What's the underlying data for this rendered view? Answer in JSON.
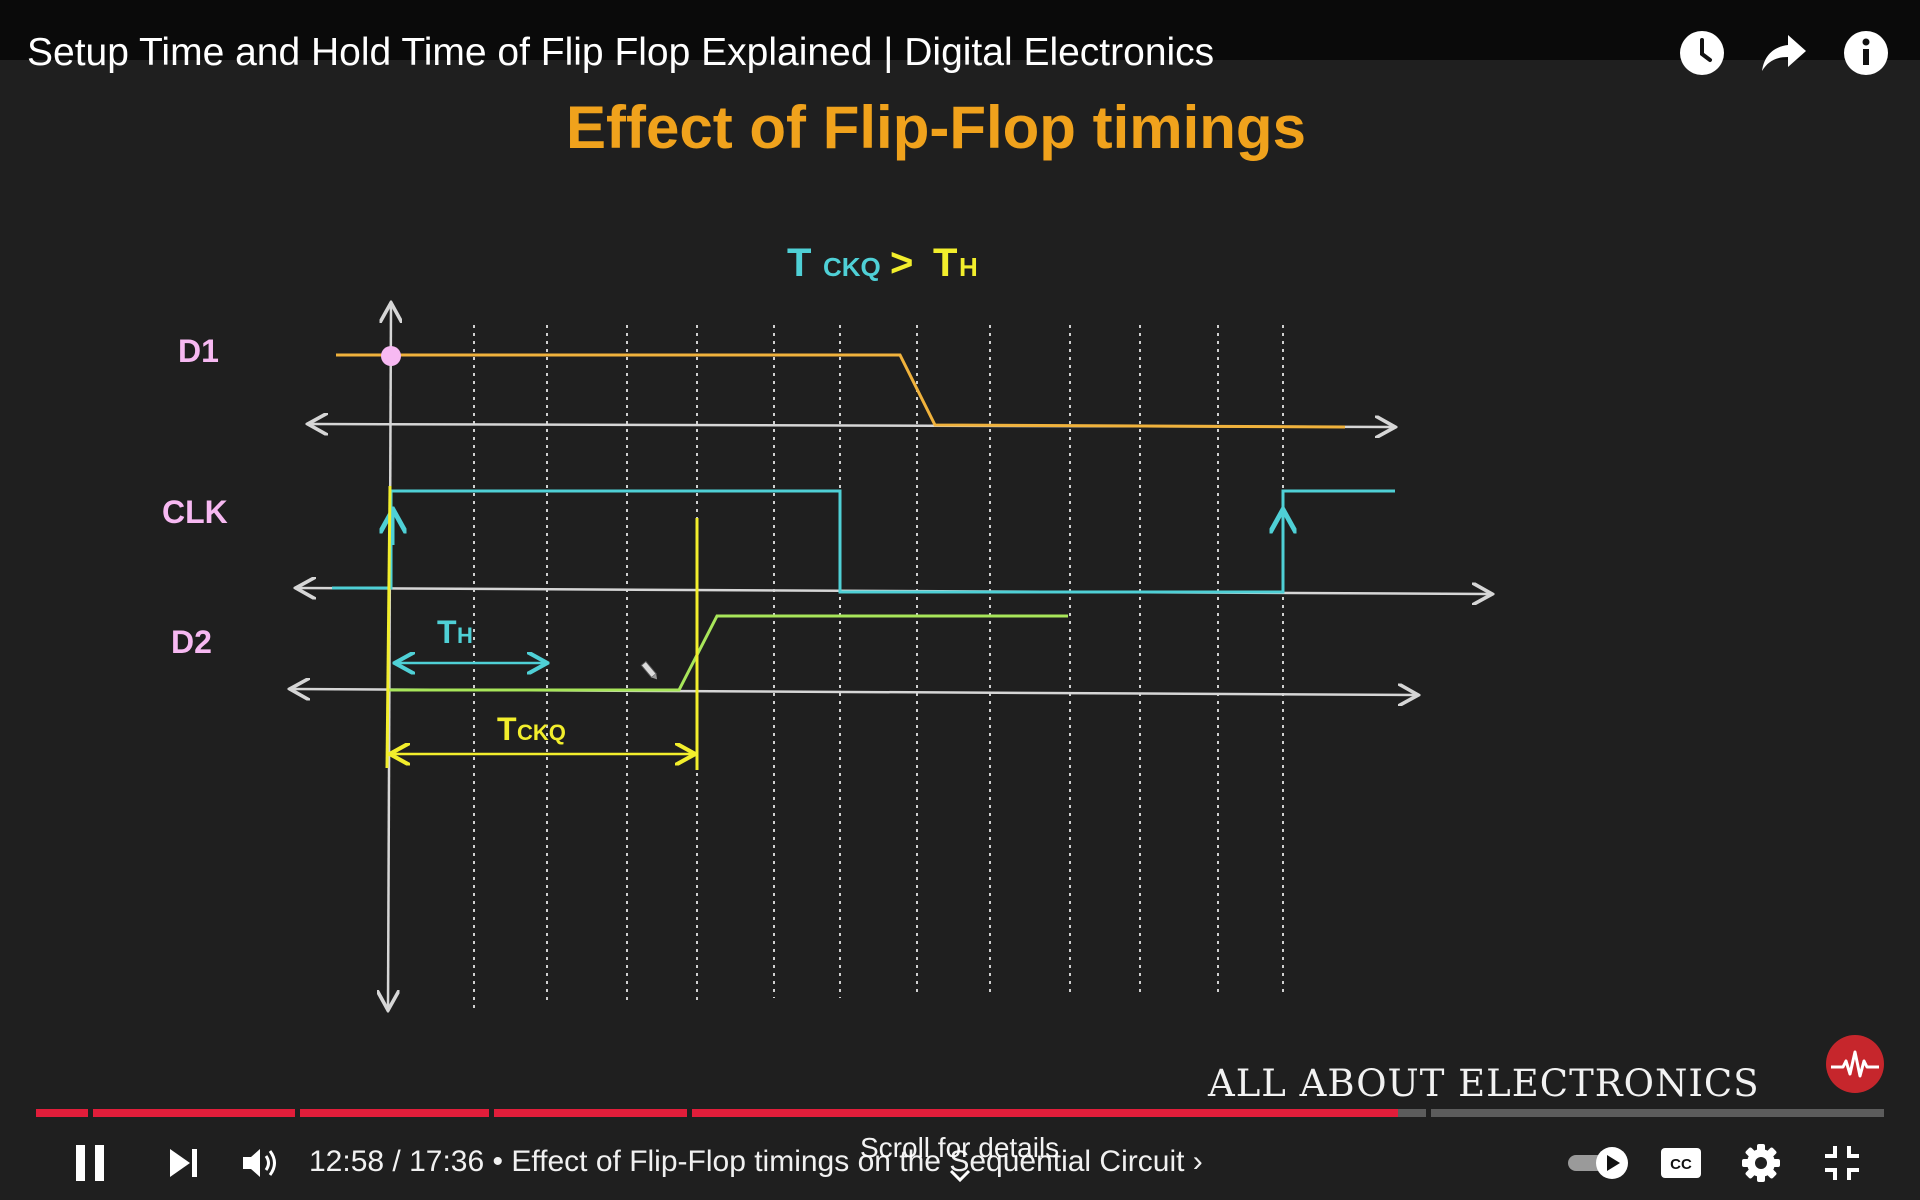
{
  "video": {
    "title": "Setup Time and Hold Time of Flip Flop Explained | Digital Electronics"
  },
  "top_icons": [
    "watch-later-icon",
    "share-icon",
    "info-icon"
  ],
  "slide": {
    "title": "Effect of Flip-Flop timings",
    "condition": {
      "t": "T",
      "ckq": "CKQ",
      "gt": ">",
      "th_t": "T",
      "th_sub": "H"
    },
    "signals": [
      "D1",
      "CLK",
      "D2"
    ],
    "th_label": {
      "t": "T",
      "sub": "H"
    },
    "tckq_label": {
      "t": "T",
      "sub": "CKQ"
    }
  },
  "brand": {
    "name": "ALL ABOUT ELECTRONICS"
  },
  "player": {
    "time_current": "12:58",
    "time_total": "17:36",
    "separator": " / ",
    "chapter": " • Effect of Flip-Flop timings on the Sequential Circuit ›",
    "progress_fraction": 0.737,
    "buffered_fraction": 0.76,
    "scroll_hint": "Scroll for details"
  },
  "colors": {
    "accent_red": "#e11d3a",
    "title_orange": "#f0a21c",
    "d1_orange": "#f0b23c",
    "clk_cyan": "#4fd0d6",
    "d2_green": "#a8e65a",
    "yellow": "#f2ee2c",
    "label_pink": "#f7b9f2"
  }
}
